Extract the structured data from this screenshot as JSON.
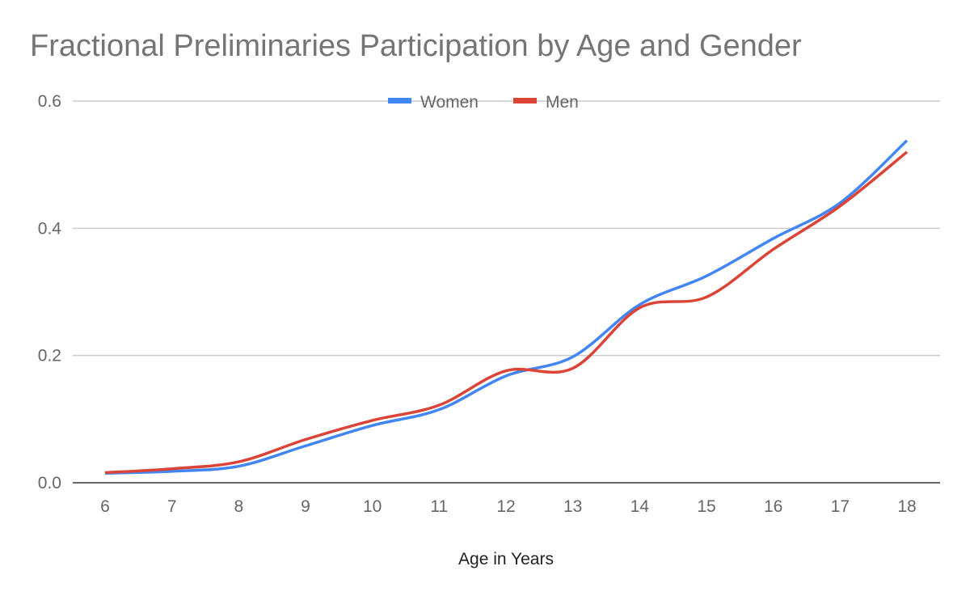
{
  "chart_data": {
    "type": "line",
    "title": "Fractional Preliminaries Participation by Age and Gender",
    "xlabel": "Age in Years",
    "ylabel": "",
    "x": [
      6,
      7,
      8,
      9,
      10,
      11,
      12,
      13,
      14,
      15,
      16,
      17,
      18
    ],
    "x_tick_labels": [
      "6",
      "7",
      "8",
      "9",
      "10",
      "11",
      "12",
      "13",
      "14",
      "15",
      "16",
      "17",
      "18"
    ],
    "y_tick_values": [
      0,
      0.2,
      0.4,
      0.6
    ],
    "y_tick_labels": [
      "0.0",
      "0.2",
      "0.4",
      "0.6"
    ],
    "ylim": [
      0,
      0.6
    ],
    "grid": true,
    "legend_position": "top",
    "series": [
      {
        "name": "Women",
        "color": "#4285f4",
        "values": [
          0.015,
          0.018,
          0.026,
          0.058,
          0.09,
          0.115,
          0.168,
          0.198,
          0.28,
          0.325,
          0.384,
          0.44,
          0.538
        ]
      },
      {
        "name": "Men",
        "color": "#db4437",
        "values": [
          0.016,
          0.022,
          0.033,
          0.068,
          0.098,
          0.122,
          0.176,
          0.18,
          0.275,
          0.292,
          0.367,
          0.435,
          0.52
        ]
      }
    ]
  }
}
